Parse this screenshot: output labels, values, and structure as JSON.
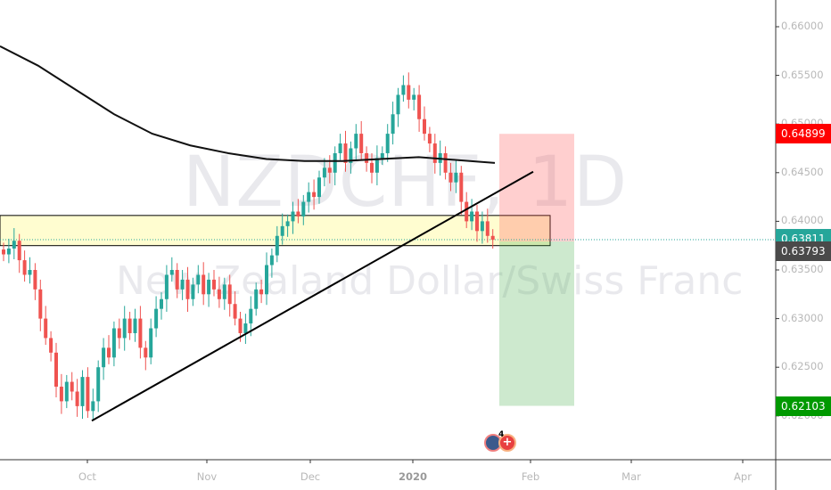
{
  "symbol_watermark": "NZDCHF, 1D",
  "description_watermark": "New Zealand Dollar/Swiss Franc",
  "price_labels": {
    "target": "0.64899",
    "last": "0.63811",
    "entry": "0.63793",
    "stop": "0.62103"
  },
  "colors": {
    "up": "#26a69a",
    "down": "#ef5350",
    "target_bg": "#ff0000",
    "last_bg": "#26a69a",
    "entry_bg": "#4a4a4a",
    "stop_bg": "#009900"
  },
  "events_badge": "4",
  "chart_data": {
    "type": "candlestick",
    "yticks": [
      "0.66000",
      "0.65500",
      "0.65000",
      "0.64500",
      "0.64000",
      "0.63500",
      "0.63000",
      "0.62500",
      "0.62000"
    ],
    "ylim": [
      0.6185,
      0.6635
    ],
    "xticks": [
      {
        "label": "Oct",
        "bold": false
      },
      {
        "label": "Nov",
        "bold": false
      },
      {
        "label": "Dec",
        "bold": false
      },
      {
        "label": "2020",
        "bold": true
      },
      {
        "label": "Feb",
        "bold": false
      },
      {
        "label": "Mar",
        "bold": false
      },
      {
        "label": "Apr",
        "bold": false
      }
    ],
    "close": [
      0.6366,
      0.6372,
      0.638,
      0.636,
      0.6345,
      0.635,
      0.633,
      0.63,
      0.628,
      0.6265,
      0.623,
      0.6215,
      0.6235,
      0.6225,
      0.621,
      0.624,
      0.6205,
      0.6215,
      0.625,
      0.627,
      0.626,
      0.629,
      0.628,
      0.63,
      0.6285,
      0.63,
      0.627,
      0.626,
      0.629,
      0.631,
      0.632,
      0.6345,
      0.635,
      0.633,
      0.634,
      0.632,
      0.6335,
      0.6345,
      0.6325,
      0.634,
      0.633,
      0.632,
      0.6335,
      0.6315,
      0.63,
      0.6285,
      0.6295,
      0.631,
      0.633,
      0.6325,
      0.6355,
      0.6365,
      0.6385,
      0.6395,
      0.64,
      0.641,
      0.6405,
      0.642,
      0.643,
      0.6425,
      0.6445,
      0.6455,
      0.645,
      0.647,
      0.648,
      0.646,
      0.6475,
      0.649,
      0.647,
      0.646,
      0.645,
      0.6465,
      0.647,
      0.649,
      0.651,
      0.653,
      0.654,
      0.6525,
      0.653,
      0.6505,
      0.649,
      0.648,
      0.646,
      0.647,
      0.645,
      0.644,
      0.645,
      0.642,
      0.64,
      0.641,
      0.639,
      0.64,
      0.6385,
      0.6381
    ],
    "moving_average": [
      0.658,
      0.656,
      0.6535,
      0.651,
      0.649,
      0.6478,
      0.647,
      0.6464,
      0.6462,
      0.6462,
      0.6464,
      0.6466,
      0.6463,
      0.646
    ],
    "trendline": [
      0.6195,
      0.6451
    ],
    "support_zone": [
      0.6375,
      0.6406
    ],
    "position": {
      "target": 0.64899,
      "entry": 0.63793,
      "stop": 0.62103
    }
  }
}
